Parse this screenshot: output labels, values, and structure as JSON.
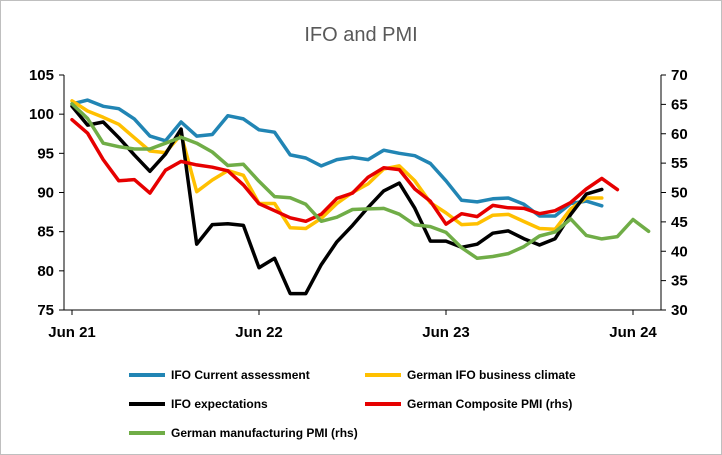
{
  "chart_data": {
    "type": "line",
    "title": "IFO and PMI",
    "xlabel": "",
    "ylabel": "",
    "ylabel_right": "",
    "x_ticks": [
      "Jun 21",
      "Jun 22",
      "Jun 23",
      "Jun 24"
    ],
    "y_left": {
      "min": 75,
      "max": 105,
      "ticks": [
        75,
        80,
        85,
        90,
        95,
        100,
        105
      ]
    },
    "y_right": {
      "min": 30,
      "max": 70,
      "ticks": [
        30,
        35,
        40,
        45,
        50,
        55,
        60,
        65,
        70
      ]
    },
    "grid": false,
    "legend_position": "bottom",
    "x_start": "Jun 21",
    "series": [
      {
        "name": "IFO Current assessment",
        "axis": "left",
        "color": "#2185b4",
        "values": [
          101.3,
          101.8,
          101.0,
          100.7,
          99.4,
          97.2,
          96.6,
          99.0,
          97.2,
          97.4,
          99.8,
          99.4,
          98.0,
          97.7,
          94.8,
          94.4,
          93.4,
          94.2,
          94.5,
          94.2,
          95.4,
          95.0,
          94.7,
          93.7,
          91.5,
          89.0,
          88.8,
          89.2,
          89.3,
          88.5,
          87.0,
          87.0,
          88.6,
          88.9,
          88.3
        ]
      },
      {
        "name": "German IFO business climate",
        "axis": "left",
        "color": "#ffc000",
        "values": [
          101.7,
          100.4,
          99.6,
          98.7,
          97.0,
          95.3,
          95.1,
          97.4,
          90.1,
          91.6,
          92.8,
          92.2,
          88.6,
          88.6,
          85.5,
          85.4,
          86.7,
          88.6,
          90.0,
          91.1,
          93.0,
          93.4,
          91.5,
          88.7,
          87.4,
          85.9,
          86.0,
          87.1,
          87.2,
          86.3,
          85.4,
          85.3,
          87.9,
          89.3,
          89.3
        ]
      },
      {
        "name": "IFO expectations",
        "axis": "left",
        "color": "#000000",
        "values": [
          101.0,
          98.6,
          99.0,
          97.0,
          94.8,
          92.7,
          94.9,
          98.1,
          83.4,
          85.9,
          86.0,
          85.8,
          80.4,
          81.6,
          77.1,
          77.1,
          80.8,
          83.7,
          85.8,
          88.1,
          90.2,
          91.2,
          88.0,
          83.8,
          83.8,
          83.0,
          83.4,
          84.8,
          85.1,
          84.1,
          83.3,
          84.1,
          87.2,
          89.8,
          90.4
        ]
      },
      {
        "name": "German Composite PMI (rhs)",
        "axis": "right",
        "color": "#e60000",
        "values": [
          62.4,
          60.1,
          55.6,
          52.0,
          52.2,
          49.9,
          53.8,
          55.3,
          54.7,
          54.3,
          53.7,
          51.3,
          48.1,
          46.9,
          45.7,
          45.1,
          46.3,
          49.0,
          49.9,
          52.6,
          54.2,
          53.9,
          50.6,
          48.5,
          44.6,
          46.4,
          45.9,
          47.8,
          47.4,
          47.3,
          46.4,
          46.9,
          48.3,
          50.6,
          52.4,
          50.5
        ]
      },
      {
        "name": "German manufacturing PMI (rhs)",
        "axis": "right",
        "color": "#70ad47",
        "values": [
          65.1,
          62.6,
          58.4,
          57.8,
          57.4,
          57.4,
          58.4,
          59.4,
          58.4,
          56.9,
          54.6,
          54.8,
          51.9,
          49.3,
          49.1,
          48.0,
          45.1,
          45.8,
          47.1,
          47.2,
          47.3,
          46.3,
          44.5,
          44.2,
          43.2,
          40.6,
          38.8,
          39.1,
          39.6,
          40.8,
          42.6,
          43.3,
          45.5,
          42.7,
          42.1,
          42.5,
          45.4,
          43.4
        ]
      }
    ]
  }
}
